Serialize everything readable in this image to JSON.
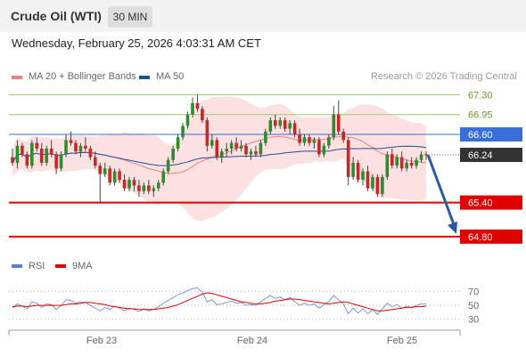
{
  "header": {
    "title": "Crude Oil (WTI)",
    "timeframe": "30 MIN"
  },
  "datetime": "Wednesday, February 25, 2026 4:03:31 AM CET",
  "legend": {
    "ma20": "MA 20 + Bollinger Bands",
    "ma50": "MA 50",
    "ma20_color": "#f08080",
    "ma50_color": "#1f4e99"
  },
  "credit": "Research © 2026 Trading Central",
  "rsi_legend": {
    "rsi": "RSI",
    "ma9": "9MA",
    "rsi_color": "#5b7fd6",
    "ma9_color": "#e00000"
  },
  "chart_data": [
    {
      "type": "candlestick",
      "ylim": [
        64.5,
        67.4
      ],
      "x_ticks": [
        "Feb 23",
        "Feb 24",
        "Feb 25"
      ],
      "price_levels": [
        {
          "value": "67.30",
          "kind": "resistance",
          "color": "#9ccc65"
        },
        {
          "value": "66.95",
          "kind": "resistance",
          "color": "#9ccc65"
        },
        {
          "value": "66.60",
          "kind": "pivot",
          "color": "#3a6fd8"
        },
        {
          "value": "66.24",
          "kind": "last",
          "color": "#333333"
        },
        {
          "value": "65.40",
          "kind": "support",
          "color": "#e00000"
        },
        {
          "value": "64.80",
          "kind": "support",
          "color": "#e00000"
        }
      ],
      "arrow": {
        "from": 66.24,
        "to": 64.8
      },
      "candles": [
        [
          66.2,
          66.35,
          66.05,
          66.1
        ],
        [
          66.1,
          66.5,
          66.0,
          66.4
        ],
        [
          66.4,
          66.45,
          66.2,
          66.25
        ],
        [
          66.25,
          66.3,
          66.0,
          66.05
        ],
        [
          66.05,
          66.5,
          66.0,
          66.45
        ],
        [
          66.45,
          66.55,
          66.3,
          66.35
        ],
        [
          66.35,
          66.45,
          66.05,
          66.1
        ],
        [
          66.1,
          66.4,
          66.05,
          66.35
        ],
        [
          66.35,
          66.5,
          66.2,
          66.25
        ],
        [
          66.25,
          66.3,
          65.9,
          66.0
        ],
        [
          66.0,
          66.3,
          65.95,
          66.25
        ],
        [
          66.25,
          66.6,
          66.2,
          66.5
        ],
        [
          66.5,
          66.65,
          66.4,
          66.45
        ],
        [
          66.45,
          66.5,
          66.25,
          66.3
        ],
        [
          66.3,
          66.45,
          66.2,
          66.4
        ],
        [
          66.4,
          66.55,
          66.3,
          66.35
        ],
        [
          66.35,
          66.4,
          66.15,
          66.2
        ],
        [
          66.2,
          66.3,
          66.0,
          66.05
        ],
        [
          66.05,
          66.1,
          65.4,
          65.9
        ],
        [
          65.9,
          66.1,
          65.85,
          66.0
        ],
        [
          66.0,
          66.05,
          65.7,
          65.75
        ],
        [
          65.75,
          66.0,
          65.7,
          65.95
        ],
        [
          65.95,
          66.0,
          65.75,
          65.8
        ],
        [
          65.8,
          65.9,
          65.6,
          65.65
        ],
        [
          65.65,
          65.85,
          65.6,
          65.8
        ],
        [
          65.8,
          65.85,
          65.6,
          65.7
        ],
        [
          65.7,
          65.8,
          65.5,
          65.6
        ],
        [
          65.6,
          65.75,
          65.55,
          65.7
        ],
        [
          65.7,
          65.8,
          65.55,
          65.6
        ],
        [
          65.6,
          65.7,
          65.5,
          65.65
        ],
        [
          65.65,
          65.8,
          65.6,
          65.75
        ],
        [
          65.75,
          66.0,
          65.7,
          65.95
        ],
        [
          65.95,
          66.2,
          65.9,
          66.15
        ],
        [
          66.15,
          66.4,
          66.1,
          66.35
        ],
        [
          66.35,
          66.6,
          66.3,
          66.55
        ],
        [
          66.55,
          66.8,
          66.5,
          66.75
        ],
        [
          66.75,
          67.0,
          66.7,
          66.95
        ],
        [
          66.95,
          67.25,
          66.9,
          67.15
        ],
        [
          67.15,
          67.3,
          67.0,
          67.05
        ],
        [
          67.05,
          67.1,
          66.8,
          66.85
        ],
        [
          66.85,
          66.9,
          66.3,
          66.4
        ],
        [
          66.4,
          66.6,
          66.35,
          66.5
        ],
        [
          66.5,
          66.55,
          66.15,
          66.2
        ],
        [
          66.2,
          66.35,
          66.1,
          66.3
        ],
        [
          66.3,
          66.45,
          66.2,
          66.35
        ],
        [
          66.35,
          66.5,
          66.25,
          66.45
        ],
        [
          66.45,
          66.55,
          66.3,
          66.35
        ],
        [
          66.35,
          66.5,
          66.3,
          66.4
        ],
        [
          66.4,
          66.45,
          66.2,
          66.25
        ],
        [
          66.25,
          66.35,
          66.15,
          66.3
        ],
        [
          66.3,
          66.4,
          66.2,
          66.25
        ],
        [
          66.25,
          66.5,
          66.2,
          66.45
        ],
        [
          66.45,
          66.7,
          66.4,
          66.65
        ],
        [
          66.65,
          66.9,
          66.6,
          66.85
        ],
        [
          66.85,
          66.95,
          66.7,
          66.75
        ],
        [
          66.75,
          66.9,
          66.7,
          66.85
        ],
        [
          66.85,
          66.9,
          66.65,
          66.7
        ],
        [
          66.7,
          66.85,
          66.6,
          66.8
        ],
        [
          66.8,
          66.85,
          66.55,
          66.6
        ],
        [
          66.6,
          66.7,
          66.4,
          66.45
        ],
        [
          66.45,
          66.6,
          66.4,
          66.55
        ],
        [
          66.55,
          66.6,
          66.4,
          66.45
        ],
        [
          66.45,
          66.55,
          66.35,
          66.5
        ],
        [
          66.5,
          66.55,
          66.2,
          66.25
        ],
        [
          66.25,
          66.45,
          66.2,
          66.4
        ],
        [
          66.4,
          66.6,
          66.35,
          66.55
        ],
        [
          66.55,
          67.1,
          66.5,
          66.95
        ],
        [
          66.95,
          67.2,
          66.6,
          66.65
        ],
        [
          66.65,
          66.7,
          66.45,
          66.5
        ],
        [
          66.5,
          66.55,
          65.7,
          65.85
        ],
        [
          65.85,
          66.2,
          65.8,
          66.1
        ],
        [
          66.1,
          66.15,
          65.75,
          65.8
        ],
        [
          65.8,
          66.0,
          65.7,
          65.95
        ],
        [
          65.95,
          66.05,
          65.6,
          65.65
        ],
        [
          65.65,
          65.9,
          65.6,
          65.85
        ],
        [
          65.85,
          65.9,
          65.5,
          65.55
        ],
        [
          65.55,
          65.9,
          65.5,
          65.85
        ],
        [
          65.85,
          66.3,
          65.8,
          66.25
        ],
        [
          66.25,
          66.35,
          66.0,
          66.05
        ],
        [
          66.05,
          66.25,
          66.0,
          66.2
        ],
        [
          66.2,
          66.3,
          65.95,
          66.0
        ],
        [
          66.0,
          66.15,
          65.95,
          66.1
        ],
        [
          66.1,
          66.2,
          66.0,
          66.05
        ],
        [
          66.05,
          66.2,
          66.0,
          66.15
        ],
        [
          66.15,
          66.3,
          66.1,
          66.25
        ],
        [
          66.25,
          66.3,
          66.15,
          66.24
        ]
      ]
    },
    {
      "type": "line",
      "title": "RSI",
      "ylim": [
        22,
        82
      ],
      "y_ticks": [
        "70",
        "50",
        "30"
      ],
      "series": [
        {
          "name": "RSI",
          "values": [
            46,
            52,
            49,
            45,
            55,
            53,
            47,
            52,
            51,
            44,
            50,
            58,
            57,
            53,
            55,
            54,
            50,
            46,
            42,
            47,
            44,
            49,
            46,
            42,
            46,
            44,
            41,
            45,
            42,
            44,
            48,
            53,
            57,
            61,
            65,
            68,
            71,
            74,
            75,
            69,
            55,
            58,
            51,
            52,
            54,
            56,
            53,
            54,
            50,
            51,
            50,
            55,
            60,
            64,
            60,
            62,
            58,
            61,
            55,
            50,
            53,
            50,
            52,
            46,
            51,
            55,
            64,
            58,
            52,
            38,
            46,
            39,
            45,
            38,
            44,
            37,
            45,
            53,
            48,
            51,
            46,
            49,
            47,
            50,
            52,
            52
          ]
        },
        {
          "name": "9MA",
          "values": [
            48,
            49,
            49,
            48,
            49,
            50,
            50,
            50,
            50,
            50,
            50,
            51,
            52,
            52,
            53,
            54,
            54,
            53,
            52,
            51,
            49,
            48,
            47,
            46,
            45,
            45,
            44,
            44,
            44,
            44,
            45,
            46,
            47,
            49,
            51,
            54,
            57,
            60,
            63,
            66,
            68,
            67,
            65,
            63,
            61,
            59,
            57,
            55,
            54,
            53,
            52,
            52,
            53,
            54,
            56,
            57,
            58,
            59,
            59,
            58,
            57,
            56,
            55,
            54,
            53,
            52,
            53,
            54,
            55,
            54,
            52,
            50,
            48,
            46,
            44,
            42,
            42,
            43,
            44,
            45,
            46,
            47,
            47,
            48,
            48,
            49
          ]
        }
      ]
    }
  ]
}
